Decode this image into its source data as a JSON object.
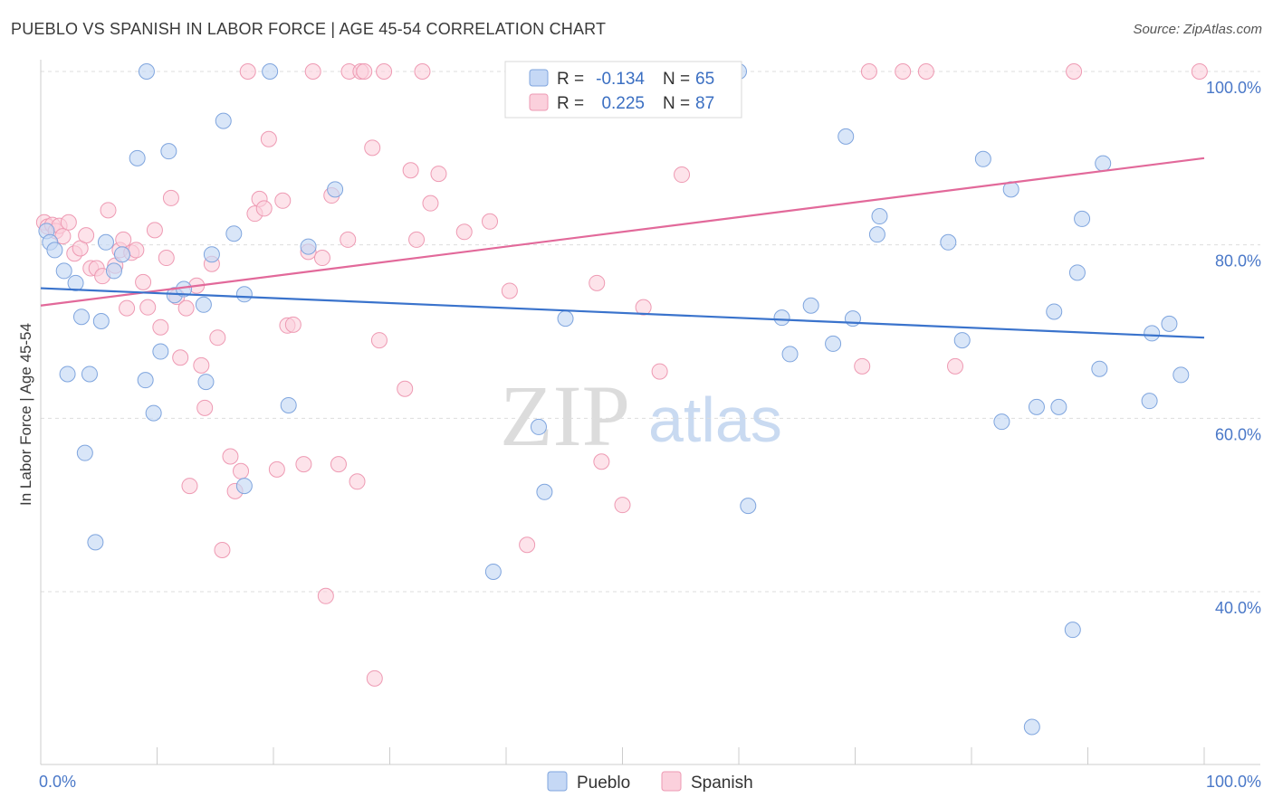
{
  "title": "PUEBLO VS SPANISH IN LABOR FORCE | AGE 45-54 CORRELATION CHART",
  "source": "Source: ZipAtlas.com",
  "watermark": {
    "zip": "ZIP",
    "atlas": "atlas"
  },
  "colors": {
    "pueblo_fill": "#c5d8f5",
    "pueblo_stroke": "#7fa5de",
    "pueblo_line": "#3a73cc",
    "spanish_fill": "#fbd0dc",
    "spanish_stroke": "#ee9ab3",
    "spanish_line": "#e2699a",
    "axis_label": "#4a78c8",
    "grid": "#dddddd"
  },
  "legend": {
    "rows": [
      {
        "r_label": "R =",
        "r_value": "-0.134",
        "n_label": "N =",
        "n_value": "65"
      },
      {
        "r_label": "R =",
        "r_value": "0.225",
        "n_label": "N =",
        "n_value": "87"
      }
    ]
  },
  "bottom_legend": {
    "pueblo": "Pueblo",
    "spanish": "Spanish"
  },
  "chart_data": {
    "type": "scatter",
    "title": "PUEBLO VS SPANISH IN LABOR FORCE | AGE 45-54 CORRELATION CHART",
    "xlabel": "",
    "ylabel": "In Labor Force | Age 45-54",
    "xlim": [
      0,
      100
    ],
    "ylim": [
      20,
      100
    ],
    "x_tick_labels": [
      "0.0%",
      "100.0%"
    ],
    "y_ticks": [
      40,
      60,
      80,
      100
    ],
    "y_tick_labels": [
      "40.0%",
      "60.0%",
      "80.0%",
      "100.0%"
    ],
    "grid": true,
    "series": [
      {
        "name": "Pueblo",
        "r": -0.134,
        "n": 65,
        "trend": {
          "x": [
            0,
            100
          ],
          "y": [
            75.0,
            69.3
          ]
        },
        "points": [
          [
            0.5,
            81.6
          ],
          [
            0.8,
            80.3
          ],
          [
            1.2,
            79.4
          ],
          [
            2.0,
            77.0
          ],
          [
            2.3,
            65.1
          ],
          [
            3.0,
            75.6
          ],
          [
            3.5,
            71.7
          ],
          [
            3.8,
            56.0
          ],
          [
            4.2,
            65.1
          ],
          [
            4.7,
            45.7
          ],
          [
            5.2,
            71.2
          ],
          [
            5.6,
            80.3
          ],
          [
            6.3,
            77.0
          ],
          [
            7.0,
            78.9
          ],
          [
            8.3,
            90.0
          ],
          [
            9.0,
            64.4
          ],
          [
            9.1,
            100.0
          ],
          [
            9.7,
            60.6
          ],
          [
            10.3,
            67.7
          ],
          [
            11.0,
            90.8
          ],
          [
            11.5,
            74.2
          ],
          [
            12.3,
            74.9
          ],
          [
            14.0,
            73.1
          ],
          [
            14.2,
            64.2
          ],
          [
            14.7,
            78.9
          ],
          [
            15.7,
            94.3
          ],
          [
            16.6,
            81.3
          ],
          [
            17.5,
            74.3
          ],
          [
            17.5,
            52.2
          ],
          [
            19.7,
            100.0
          ],
          [
            21.3,
            61.5
          ],
          [
            23.0,
            79.8
          ],
          [
            25.3,
            86.4
          ],
          [
            38.9,
            42.3
          ],
          [
            42.8,
            59.0
          ],
          [
            43.3,
            51.5
          ],
          [
            45.1,
            71.5
          ],
          [
            60.0,
            100.0
          ],
          [
            60.8,
            49.9
          ],
          [
            63.7,
            71.6
          ],
          [
            64.4,
            67.4
          ],
          [
            66.2,
            73.0
          ],
          [
            68.1,
            68.6
          ],
          [
            69.2,
            92.5
          ],
          [
            69.8,
            71.5
          ],
          [
            71.9,
            81.2
          ],
          [
            72.1,
            83.3
          ],
          [
            78.0,
            80.3
          ],
          [
            79.2,
            69.0
          ],
          [
            81.0,
            89.9
          ],
          [
            82.6,
            59.6
          ],
          [
            83.4,
            86.4
          ],
          [
            85.2,
            24.4
          ],
          [
            85.6,
            61.3
          ],
          [
            87.1,
            72.3
          ],
          [
            87.5,
            61.3
          ],
          [
            88.7,
            35.6
          ],
          [
            89.1,
            76.8
          ],
          [
            89.5,
            83.0
          ],
          [
            91.0,
            65.7
          ],
          [
            91.3,
            89.4
          ],
          [
            95.3,
            62.0
          ],
          [
            95.5,
            69.8
          ],
          [
            97.0,
            70.9
          ],
          [
            98.0,
            65.0
          ]
        ]
      },
      {
        "name": "Spanish",
        "r": 0.225,
        "n": 87,
        "trend": {
          "x": [
            0,
            100
          ],
          "y": [
            73.0,
            90.0
          ]
        },
        "points": [
          [
            0.3,
            82.6
          ],
          [
            0.6,
            82.1
          ],
          [
            1.0,
            82.3
          ],
          [
            1.3,
            81.6
          ],
          [
            1.6,
            82.2
          ],
          [
            1.9,
            81.0
          ],
          [
            2.4,
            82.6
          ],
          [
            2.9,
            79.0
          ],
          [
            3.4,
            79.6
          ],
          [
            3.9,
            81.1
          ],
          [
            4.3,
            77.3
          ],
          [
            4.8,
            77.3
          ],
          [
            5.3,
            76.4
          ],
          [
            5.8,
            84.0
          ],
          [
            6.4,
            77.6
          ],
          [
            6.8,
            79.4
          ],
          [
            7.1,
            80.6
          ],
          [
            7.4,
            72.7
          ],
          [
            7.8,
            79.1
          ],
          [
            8.2,
            79.4
          ],
          [
            8.8,
            75.7
          ],
          [
            9.2,
            72.8
          ],
          [
            9.8,
            81.7
          ],
          [
            10.3,
            70.5
          ],
          [
            10.8,
            78.5
          ],
          [
            11.2,
            85.4
          ],
          [
            11.7,
            74.0
          ],
          [
            12.0,
            67.0
          ],
          [
            12.5,
            72.7
          ],
          [
            12.8,
            52.2
          ],
          [
            13.4,
            75.3
          ],
          [
            13.8,
            66.1
          ],
          [
            14.1,
            61.2
          ],
          [
            14.7,
            77.8
          ],
          [
            15.2,
            69.3
          ],
          [
            15.6,
            44.8
          ],
          [
            16.3,
            55.6
          ],
          [
            16.7,
            51.6
          ],
          [
            17.2,
            53.9
          ],
          [
            17.8,
            100.0
          ],
          [
            18.4,
            83.6
          ],
          [
            18.8,
            85.3
          ],
          [
            19.2,
            84.2
          ],
          [
            19.6,
            92.2
          ],
          [
            20.3,
            54.1
          ],
          [
            20.8,
            85.1
          ],
          [
            21.2,
            70.7
          ],
          [
            21.7,
            70.8
          ],
          [
            22.6,
            54.7
          ],
          [
            23.0,
            79.2
          ],
          [
            23.4,
            100.0
          ],
          [
            24.2,
            78.5
          ],
          [
            24.5,
            39.5
          ],
          [
            25.0,
            85.7
          ],
          [
            25.6,
            54.7
          ],
          [
            26.4,
            80.6
          ],
          [
            26.5,
            100.0
          ],
          [
            27.2,
            52.7
          ],
          [
            27.5,
            100.0
          ],
          [
            27.8,
            100.0
          ],
          [
            28.5,
            91.2
          ],
          [
            28.7,
            30.0
          ],
          [
            29.1,
            69.0
          ],
          [
            29.5,
            100.0
          ],
          [
            31.3,
            63.4
          ],
          [
            31.8,
            88.6
          ],
          [
            32.3,
            80.6
          ],
          [
            32.8,
            100.0
          ],
          [
            33.5,
            84.8
          ],
          [
            34.2,
            88.2
          ],
          [
            36.4,
            81.5
          ],
          [
            38.6,
            82.7
          ],
          [
            40.3,
            74.7
          ],
          [
            41.8,
            45.4
          ],
          [
            47.0,
            100.0
          ],
          [
            47.8,
            75.6
          ],
          [
            48.2,
            55.0
          ],
          [
            50.0,
            50.0
          ],
          [
            51.8,
            72.8
          ],
          [
            53.2,
            65.4
          ],
          [
            55.1,
            88.1
          ],
          [
            70.6,
            66.0
          ],
          [
            71.2,
            100.0
          ],
          [
            74.1,
            100.0
          ],
          [
            76.1,
            100.0
          ],
          [
            78.6,
            66.0
          ],
          [
            88.8,
            100.0
          ],
          [
            99.6,
            100.0
          ]
        ]
      }
    ]
  }
}
